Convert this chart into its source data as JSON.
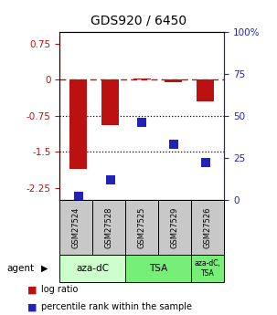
{
  "title": "GDS920 / 6450",
  "samples": [
    "GSM27524",
    "GSM27528",
    "GSM27525",
    "GSM27529",
    "GSM27526"
  ],
  "log_ratios": [
    -1.85,
    -0.95,
    0.03,
    -0.05,
    -0.45
  ],
  "percentile_ranks": [
    2.0,
    12.0,
    46.0,
    33.0,
    22.0
  ],
  "ylim_left": [
    -2.5,
    1.0
  ],
  "ylim_right": [
    0,
    100
  ],
  "yticks_left": [
    -2.25,
    -1.5,
    -0.75,
    0.0,
    0.75
  ],
  "ytick_labels_left": [
    "-2.25",
    "-1.5",
    "-0.75",
    "0",
    "0.75"
  ],
  "yticks_right": [
    0,
    25,
    50,
    75,
    100
  ],
  "ytick_labels_right": [
    "0",
    "25",
    "50",
    "75",
    "100%"
  ],
  "hlines_dotted": [
    -0.75,
    -1.5
  ],
  "hline_dashed": 0.0,
  "bar_color": "#bb1111",
  "dot_color": "#2222bb",
  "bar_width": 0.55,
  "dot_size": 55,
  "left_tick_color": "#bb1111",
  "right_tick_color": "#2222bb",
  "sample_box_color": "#c8c8c8",
  "agent_spans": [
    {
      "start": 0,
      "end": 2,
      "label": "aza-dC",
      "color": "#ccffcc"
    },
    {
      "start": 2,
      "end": 4,
      "label": "TSA",
      "color": "#77ee77"
    },
    {
      "start": 4,
      "end": 5,
      "label": "aza-dC,\nTSA",
      "color": "#77ee77"
    }
  ],
  "legend_items": [
    {
      "color": "#bb1111",
      "label": "log ratio"
    },
    {
      "color": "#2222bb",
      "label": "percentile rank within the sample"
    }
  ],
  "title_fontsize": 10,
  "tick_fontsize": 7.5,
  "sample_fontsize": 6.0,
  "agent_fontsize": 7.5,
  "agent_fontsize_small": 5.5,
  "legend_fontsize": 7.0
}
